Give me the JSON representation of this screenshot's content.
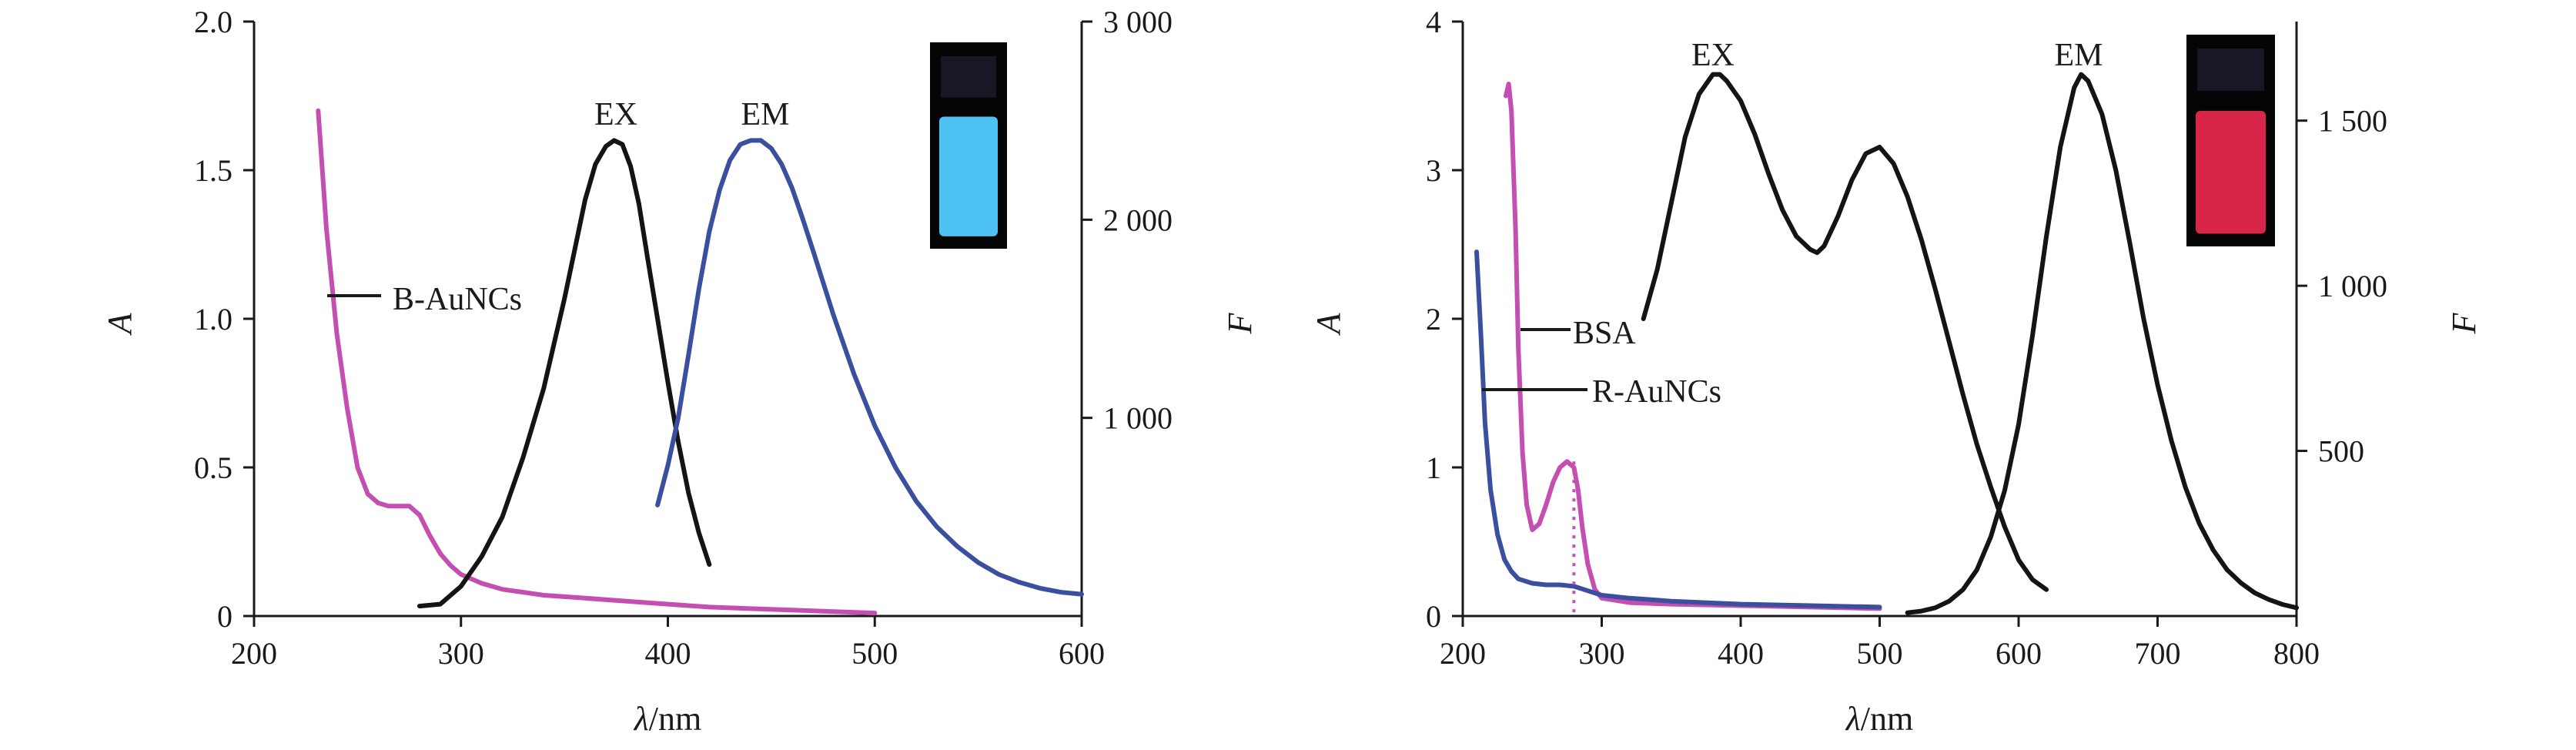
{
  "colors": {
    "magenta": "#c44fb0",
    "black": "#141414",
    "blue": "#3a4f9e"
  },
  "chart_data": [
    {
      "type": "line",
      "xlabel": "λ/nm",
      "ylabel_left": "A",
      "ylabel_right": "F",
      "xlim": [
        200,
        600
      ],
      "ylim_left": [
        0,
        2.0
      ],
      "ylim_right": [
        0,
        3000
      ],
      "x_ticks": [
        "200",
        "300",
        "400",
        "500",
        "600"
      ],
      "y_left_ticks": [
        "0",
        "0.5",
        "1.0",
        "1.5",
        "2.0"
      ],
      "y_right_ticks": [
        "1 000",
        "2 000",
        "3 000"
      ],
      "annotations": [
        {
          "text": "EX",
          "target": "EX"
        },
        {
          "text": "EM",
          "target": "EM"
        },
        {
          "text": "B-AuNCs",
          "target": "B-AuNCs"
        }
      ],
      "inset": {
        "description": "cuvette glowing blue",
        "color": "#4ec2f2"
      },
      "series": [
        {
          "name": "B-AuNCs",
          "axis": "left",
          "color_key": "magenta",
          "x": [
            231,
            235,
            240,
            245,
            250,
            255,
            260,
            265,
            270,
            275,
            280,
            285,
            290,
            295,
            300,
            310,
            320,
            330,
            340,
            350,
            360,
            380,
            400,
            420,
            440,
            460,
            480,
            500
          ],
          "y": [
            1.7,
            1.3,
            0.95,
            0.7,
            0.5,
            0.41,
            0.38,
            0.37,
            0.37,
            0.37,
            0.34,
            0.27,
            0.21,
            0.17,
            0.14,
            0.11,
            0.09,
            0.08,
            0.07,
            0.065,
            0.06,
            0.05,
            0.04,
            0.03,
            0.025,
            0.02,
            0.015,
            0.01
          ]
        },
        {
          "name": "EX",
          "axis": "right",
          "color_key": "black",
          "x": [
            280,
            290,
            300,
            310,
            320,
            330,
            340,
            350,
            355,
            360,
            365,
            370,
            374,
            378,
            382,
            386,
            390,
            395,
            400,
            405,
            410,
            415,
            420
          ],
          "y": [
            50,
            60,
            150,
            300,
            500,
            800,
            1150,
            1600,
            1850,
            2100,
            2280,
            2370,
            2400,
            2380,
            2270,
            2080,
            1820,
            1500,
            1180,
            880,
            620,
            420,
            260
          ]
        },
        {
          "name": "EM",
          "axis": "right",
          "color_key": "blue",
          "x": [
            395,
            400,
            405,
            410,
            415,
            420,
            425,
            430,
            435,
            440,
            445,
            450,
            455,
            460,
            465,
            470,
            480,
            490,
            500,
            510,
            520,
            530,
            540,
            550,
            560,
            570,
            580,
            590,
            600
          ],
          "y": [
            560,
            760,
            1000,
            1320,
            1650,
            1940,
            2150,
            2300,
            2380,
            2400,
            2400,
            2360,
            2280,
            2160,
            2010,
            1850,
            1520,
            1220,
            960,
            750,
            580,
            450,
            350,
            270,
            210,
            170,
            140,
            120,
            110
          ]
        }
      ]
    },
    {
      "type": "line",
      "xlabel": "λ/nm",
      "ylabel_left": "A",
      "ylabel_right": "F",
      "xlim": [
        200,
        800
      ],
      "ylim_left": [
        0,
        4
      ],
      "ylim_right": [
        0,
        1800
      ],
      "x_ticks": [
        "200",
        "300",
        "400",
        "500",
        "600",
        "700",
        "800"
      ],
      "y_left_ticks": [
        "0",
        "1",
        "2",
        "3",
        "4"
      ],
      "y_right_ticks": [
        "500",
        "1 000",
        "1 500"
      ],
      "annotations": [
        {
          "text": "EX",
          "target": "EX"
        },
        {
          "text": "EM",
          "target": "EM"
        },
        {
          "text": "BSA",
          "target": "BSA"
        },
        {
          "text": "R-AuNCs",
          "target": "R-AuNCs"
        }
      ],
      "inset": {
        "description": "cuvette glowing red",
        "color": "#d82648"
      },
      "series": [
        {
          "name": "BSA",
          "axis": "left",
          "color_key": "magenta",
          "x": [
            231,
            233,
            235,
            238,
            240,
            243,
            246,
            250,
            255,
            260,
            265,
            270,
            275,
            280,
            283,
            286,
            290,
            295,
            300,
            320,
            350,
            400,
            450,
            500
          ],
          "y": [
            3.5,
            3.58,
            3.4,
            2.6,
            1.8,
            1.1,
            0.75,
            0.58,
            0.62,
            0.75,
            0.9,
            1.0,
            1.04,
            1.0,
            0.85,
            0.6,
            0.35,
            0.18,
            0.12,
            0.09,
            0.08,
            0.07,
            0.06,
            0.05
          ]
        },
        {
          "name": "R-AuNCs",
          "axis": "left",
          "color_key": "blue",
          "x": [
            210,
            213,
            216,
            220,
            225,
            230,
            235,
            240,
            250,
            260,
            270,
            280,
            290,
            300,
            320,
            350,
            400,
            450,
            500
          ],
          "y": [
            2.45,
            1.9,
            1.3,
            0.85,
            0.55,
            0.38,
            0.3,
            0.25,
            0.22,
            0.21,
            0.21,
            0.2,
            0.17,
            0.14,
            0.12,
            0.1,
            0.08,
            0.07,
            0.06
          ]
        },
        {
          "name": "EX",
          "axis": "right",
          "color_key": "black",
          "x": [
            330,
            340,
            350,
            360,
            370,
            380,
            385,
            390,
            400,
            410,
            420,
            430,
            440,
            450,
            455,
            460,
            470,
            480,
            490,
            500,
            510,
            520,
            530,
            540,
            550,
            560,
            570,
            580,
            590,
            600,
            610,
            620
          ],
          "y": [
            900,
            1050,
            1250,
            1450,
            1580,
            1640,
            1640,
            1620,
            1560,
            1460,
            1340,
            1230,
            1150,
            1110,
            1100,
            1120,
            1210,
            1320,
            1400,
            1420,
            1370,
            1270,
            1140,
            990,
            830,
            670,
            520,
            390,
            270,
            170,
            110,
            80
          ]
        },
        {
          "name": "EM",
          "axis": "right",
          "color_key": "black",
          "x": [
            520,
            530,
            540,
            550,
            560,
            570,
            580,
            590,
            600,
            610,
            620,
            630,
            640,
            645,
            650,
            660,
            670,
            680,
            690,
            700,
            710,
            720,
            730,
            740,
            750,
            760,
            770,
            780,
            790,
            800
          ],
          "y": [
            10,
            15,
            25,
            45,
            80,
            140,
            240,
            380,
            580,
            850,
            1150,
            1420,
            1600,
            1640,
            1620,
            1520,
            1350,
            1130,
            900,
            700,
            530,
            390,
            280,
            200,
            140,
            100,
            70,
            50,
            35,
            25
          ]
        }
      ]
    }
  ]
}
